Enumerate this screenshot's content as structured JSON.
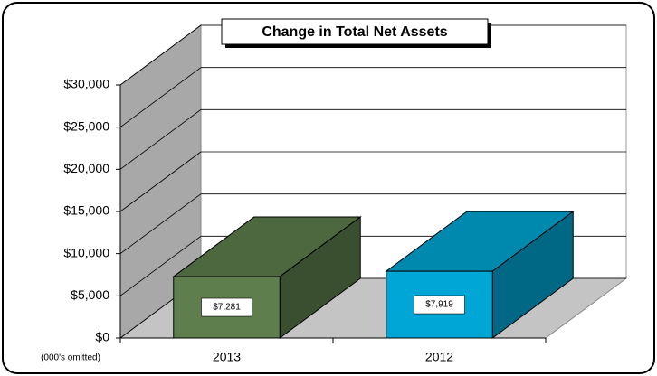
{
  "chart_data": {
    "type": "bar3d",
    "title": "Change in Total Net Assets",
    "annotation": "(000's omitted)",
    "categories": [
      "2013",
      "2012"
    ],
    "values": [
      7281,
      7919
    ],
    "value_labels": [
      "$7,281",
      "$7,919"
    ],
    "colors": [
      "#5e7f4d",
      "#00a7d6"
    ],
    "ylim": [
      0,
      30000
    ],
    "yticks": [
      {
        "value": 0,
        "label": "$0"
      },
      {
        "value": 5000,
        "label": "$5,000"
      },
      {
        "value": 10000,
        "label": "$10,000"
      },
      {
        "value": 15000,
        "label": "$15,000"
      },
      {
        "value": 20000,
        "label": "$20,000"
      },
      {
        "value": 25000,
        "label": "$25,000"
      },
      {
        "value": 30000,
        "label": "$30,000"
      }
    ],
    "grid": true
  }
}
